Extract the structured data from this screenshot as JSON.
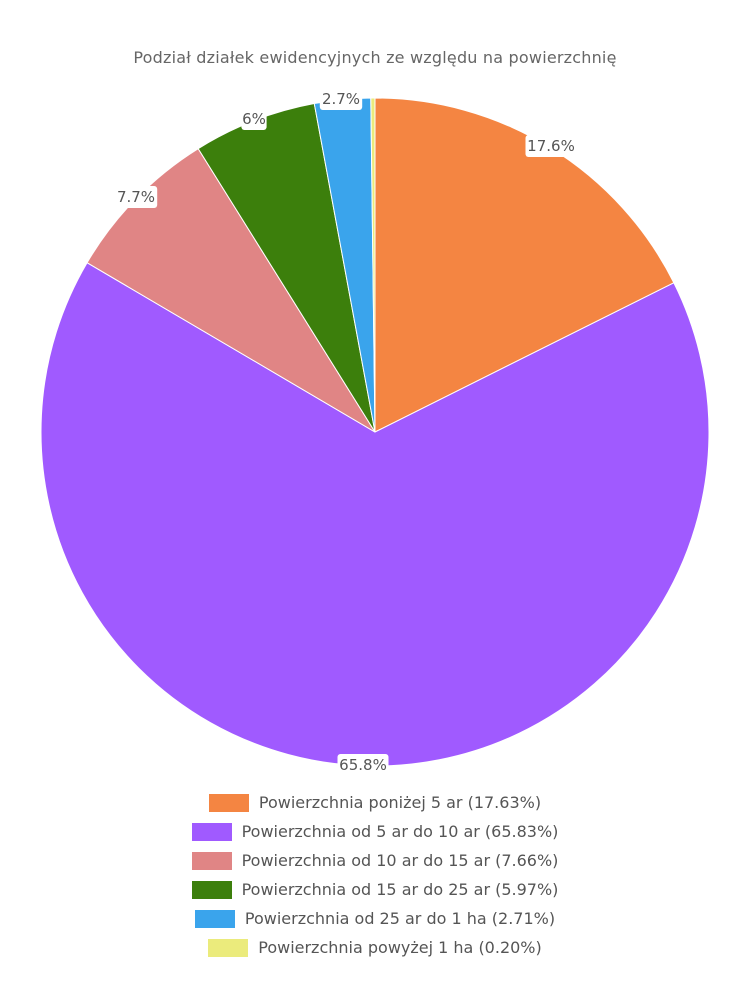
{
  "chart_data": {
    "type": "pie",
    "title": "Podział działek ewidencyjnych ze względu na powierzchnię",
    "slices": [
      {
        "label": "Powierzchnia poniżej 5 ar (17.63%)",
        "value": 17.63,
        "slice_label": "17.6%",
        "color": "#f48542"
      },
      {
        "label": "Powierzchnia od 5 ar do 10 ar (65.83%)",
        "value": 65.83,
        "slice_label": "65.8%",
        "color": "#a05aff"
      },
      {
        "label": "Powierzchnia od 10 ar do 15 ar (7.66%)",
        "value": 7.66,
        "slice_label": "7.7%",
        "color": "#e08585"
      },
      {
        "label": "Powierzchnia od 15 ar do 25 ar (5.97%)",
        "value": 5.97,
        "slice_label": "6%",
        "color": "#3c7f0c"
      },
      {
        "label": "Powierzchnia od 25 ar do 1 ha (2.71%)",
        "value": 2.71,
        "slice_label": "2.7%",
        "color": "#3aa4ec"
      },
      {
        "label": "Powierzchnia powyżej 1 ha (0.20%)",
        "value": 0.2,
        "slice_label": "",
        "color": "#ebeb7c"
      }
    ],
    "legend_position": "bottom"
  }
}
